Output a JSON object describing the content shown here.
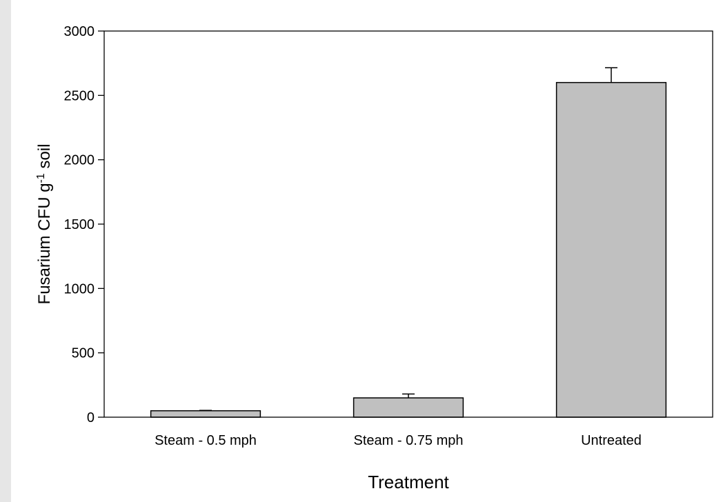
{
  "chart_data": {
    "type": "bar",
    "categories": [
      "Steam - 0.5 mph",
      "Steam - 0.75 mph",
      "Untreated"
    ],
    "values": [
      50,
      150,
      2600
    ],
    "error_plus": [
      3,
      30,
      115
    ],
    "xlabel": "Treatment",
    "ylabel": {
      "main": "Fusarium CFU g",
      "superscript": "-1",
      "suffix": " soil"
    },
    "ylim": [
      0,
      3000
    ],
    "yticks": [
      0,
      500,
      1000,
      1500,
      2000,
      2500,
      3000
    ],
    "grid": false,
    "bar_color": "#c0c0c0",
    "edge_color": "#000000"
  }
}
